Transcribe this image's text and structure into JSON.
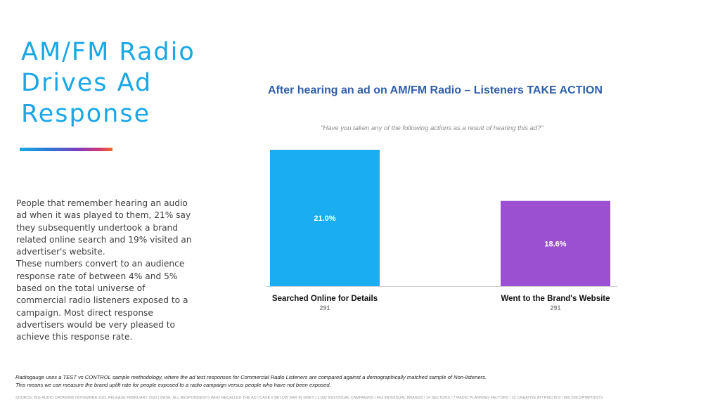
{
  "headline": {
    "lines": [
      "AM/FM Radio",
      "Drives Ad",
      "Response"
    ]
  },
  "body_text": {
    "lines": [
      "People that remember hearing an audio",
      "ad when it was played  to them, 21% say",
      "they subsequently undertook a brand",
      "related online search and 19% visited an",
      "advertiser's website.",
      "These numbers convert to an audience",
      "response rate of between 4% and 5%",
      "based on the total universe of",
      "commercial radio listeners exposed to a",
      "campaign. Most direct response",
      "advertisers would be very pleased to",
      "achieve this response rate."
    ]
  },
  "footnote": {
    "method_lines": [
      "Radiogauge uses a TEST vs CONTROL sample methodology, where the ad test responses for Commercial Radio Listeners are compared against a demographically matched sample of Non-listeners.",
      "This means we can measure the brand uplift rate for people exposed to a radio campaign versus people who have not been exposed."
    ],
    "source": "SOURCE: BIG AUDIO DATAMINE NOVEMBER 2021 RELEASE FEBRUARY 2022 | BASE: ALL RESPONDENTS WHO RECALLED THE AD | CASE # BELOW BAR IN GREY | 1,002 INDIVIDUAL CAMPAIGNS / 463 INDIVIDUAL BRANDS / 14 SECTORS / 7 RADIO PLANNING FACTORS / 22 CREATIVE ATTRIBUTES / 800,598 DATAPOINTS"
  },
  "colors": {
    "headline": "#19a7e6",
    "chart_title": "#2f5ea8",
    "bar_searched": "#1aaef0",
    "bar_website": "#9b4fd1"
  },
  "chart_data": {
    "type": "bar",
    "title": "After hearing an ad on AM/FM Radio – Listeners TAKE ACTION",
    "subtitle": "\"Have you taken any of the following actions as a result of hearing this ad?\"",
    "categories": [
      "Searched Online for Details",
      "Went to the Brand's Website"
    ],
    "values": [
      21.0,
      18.6
    ],
    "value_labels": [
      "21.0%",
      "18.6%"
    ],
    "case_counts": [
      "291",
      "291"
    ],
    "bar_colors": [
      "#1aaef0",
      "#9b4fd1"
    ],
    "ylim": [
      14.6,
      21.0
    ],
    "grid": false,
    "legend": "none",
    "xlabel": "",
    "ylabel": ""
  }
}
